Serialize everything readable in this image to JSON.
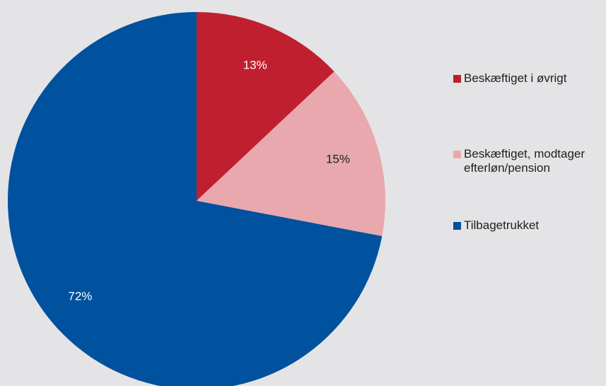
{
  "chart_data": {
    "type": "pie",
    "start_angle": "12 o'clock",
    "direction": "clockwise",
    "slices": [
      {
        "label": "Beskæftiget i øvrigt",
        "value": 13,
        "display": "13%",
        "color": "#c01f30",
        "label_color": "#ffffff"
      },
      {
        "label": "Beskæftiget, modtager efterløn/pension",
        "value": 15,
        "display": "15%",
        "color": "#e8a8ad",
        "label_color": "#1f1f1f"
      },
      {
        "label": "Tilbagetrukket",
        "value": 72,
        "display": "72%",
        "color": "#00519e",
        "label_color": "#ffffff"
      }
    ],
    "legend": {
      "placement": "right",
      "items": [
        {
          "text": "Beskæftiget i øvrigt",
          "color": "#c01f30"
        },
        {
          "text": "Beskæftiget, modtager efterløn/pension",
          "color": "#e8a8ad"
        },
        {
          "text": "Tilbagetrukket",
          "color": "#00519e"
        }
      ]
    }
  }
}
